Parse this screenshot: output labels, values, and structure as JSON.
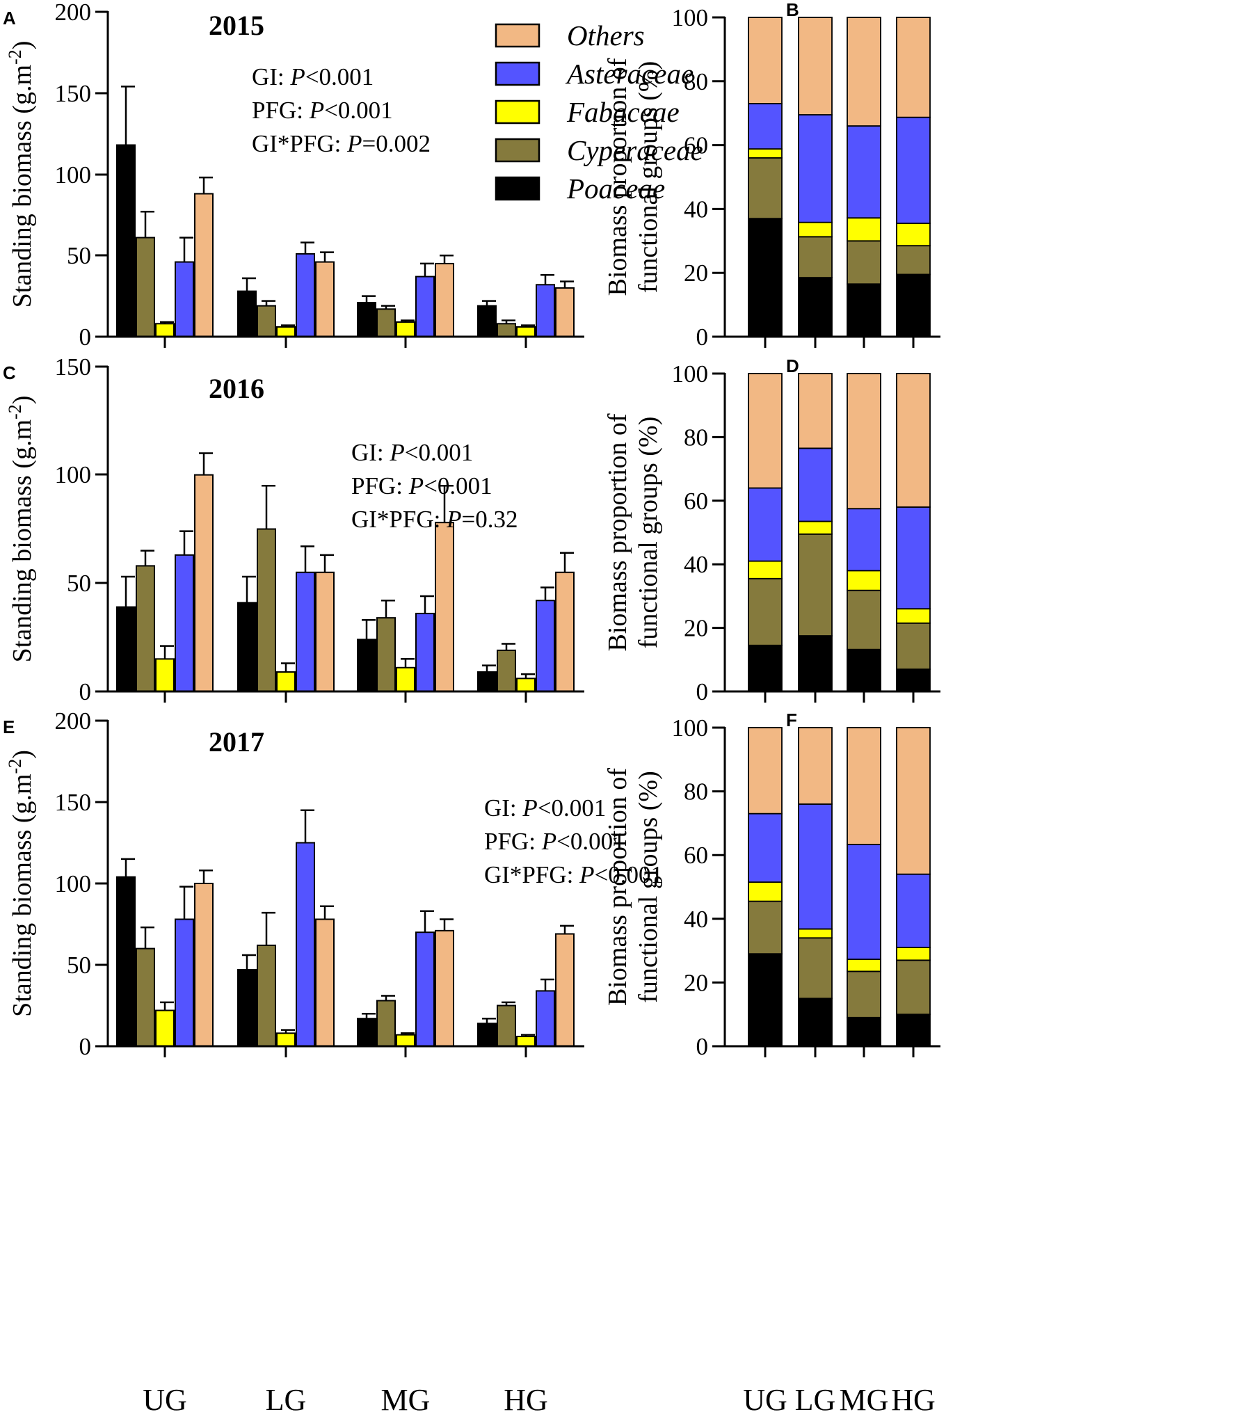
{
  "colors": {
    "Poaceae": "#000000",
    "Cyperaceae": "#857a3d",
    "Fabaceae": "#ffff00",
    "Asteraceae": "#5454ff",
    "Others": "#f2b884"
  },
  "legend": [
    "Others",
    "Asteraceae",
    "Fabaceae",
    "Cyperaceae",
    "Poaceae"
  ],
  "chart_data": [
    {
      "panel": "A",
      "type": "bar",
      "title": "2015",
      "ylabel": "Standing biomass (g.m-2)",
      "ylim": [
        0,
        200
      ],
      "yticks": [
        0,
        50,
        100,
        150,
        200
      ],
      "categories": [
        "UG",
        "LG",
        "MG",
        "HG"
      ],
      "stats": [
        {
          "label": "GI: ",
          "p": "P",
          "rest": "<0.001"
        },
        {
          "label": "PFG: ",
          "p": "P",
          "rest": "<0.001"
        },
        {
          "label": "GI*PFG: ",
          "p": "P",
          "rest": "=0.002"
        }
      ],
      "series": [
        {
          "name": "Poaceae",
          "values": [
            118,
            28,
            21,
            19
          ],
          "errors": [
            36,
            8,
            4,
            3
          ]
        },
        {
          "name": "Cyperaceae",
          "values": [
            61,
            19,
            17,
            8
          ],
          "errors": [
            16,
            3,
            2,
            2
          ]
        },
        {
          "name": "Fabaceae",
          "values": [
            8,
            6,
            9,
            6
          ],
          "errors": [
            1,
            1,
            1,
            1
          ]
        },
        {
          "name": "Asteraceae",
          "values": [
            46,
            51,
            37,
            32
          ],
          "errors": [
            15,
            7,
            8,
            6
          ]
        },
        {
          "name": "Others",
          "values": [
            88,
            46,
            45,
            30
          ],
          "errors": [
            10,
            6,
            5,
            4
          ]
        }
      ]
    },
    {
      "panel": "B",
      "type": "stacked-bar",
      "ylabel_lines": [
        "Biomass proportion of",
        "functional groups (%)"
      ],
      "ylim": [
        0,
        100
      ],
      "yticks": [
        0,
        20,
        40,
        60,
        80,
        100
      ],
      "categories": [
        "UG",
        "LG",
        "MG",
        "HG"
      ],
      "series": [
        {
          "name": "Poaceae",
          "values": [
            37,
            18.5,
            16.5,
            19.5
          ]
        },
        {
          "name": "Cyperaceae",
          "values": [
            19,
            12.8,
            13.5,
            9
          ]
        },
        {
          "name": "Fabaceae",
          "values": [
            2.8,
            4.5,
            7.2,
            7
          ]
        },
        {
          "name": "Asteraceae",
          "values": [
            14.2,
            33.7,
            28.8,
            33.2
          ]
        },
        {
          "name": "Others",
          "values": [
            27,
            30.5,
            34,
            31.3
          ]
        }
      ]
    },
    {
      "panel": "C",
      "type": "bar",
      "title": "2016",
      "ylabel": "Standing biomass (g.m-2)",
      "ylim": [
        0,
        150
      ],
      "yticks": [
        0,
        50,
        100,
        150
      ],
      "categories": [
        "UG",
        "LG",
        "MG",
        "HG"
      ],
      "stats": [
        {
          "label": "GI: ",
          "p": "P",
          "rest": "<0.001"
        },
        {
          "label": "PFG: ",
          "p": "P",
          "rest": "<0.001"
        },
        {
          "label": "GI*PFG: ",
          "p": "P",
          "rest": "=0.32"
        }
      ],
      "series": [
        {
          "name": "Poaceae",
          "values": [
            39,
            41,
            24,
            9
          ],
          "errors": [
            14,
            12,
            9,
            3
          ]
        },
        {
          "name": "Cyperaceae",
          "values": [
            58,
            75,
            34,
            19
          ],
          "errors": [
            7,
            20,
            8,
            3
          ]
        },
        {
          "name": "Fabaceae",
          "values": [
            15,
            9,
            11,
            6
          ],
          "errors": [
            6,
            4,
            4,
            2
          ]
        },
        {
          "name": "Asteraceae",
          "values": [
            63,
            55,
            36,
            42
          ],
          "errors": [
            11,
            12,
            8,
            6
          ]
        },
        {
          "name": "Others",
          "values": [
            100,
            55,
            78,
            55
          ],
          "errors": [
            10,
            8,
            17,
            9
          ]
        }
      ]
    },
    {
      "panel": "D",
      "type": "stacked-bar",
      "ylabel_lines": [
        "Biomass proportion of",
        "functional groups (%)"
      ],
      "ylim": [
        0,
        100
      ],
      "yticks": [
        0,
        20,
        40,
        60,
        80,
        100
      ],
      "categories": [
        "UG",
        "LG",
        "MG",
        "HG"
      ],
      "series": [
        {
          "name": "Poaceae",
          "values": [
            14.5,
            17.5,
            13.2,
            7
          ]
        },
        {
          "name": "Cyperaceae",
          "values": [
            21,
            32,
            18.6,
            14.5
          ]
        },
        {
          "name": "Fabaceae",
          "values": [
            5.5,
            4,
            6.2,
            4.5
          ]
        },
        {
          "name": "Asteraceae",
          "values": [
            23,
            23,
            19.5,
            32
          ]
        },
        {
          "name": "Others",
          "values": [
            36,
            23.5,
            42.5,
            42
          ]
        }
      ]
    },
    {
      "panel": "E",
      "type": "bar",
      "title": "2017",
      "ylabel": "Standing biomass (g.m-2)",
      "ylim": [
        0,
        200
      ],
      "yticks": [
        0,
        50,
        100,
        150,
        200
      ],
      "categories": [
        "UG",
        "LG",
        "MG",
        "HG"
      ],
      "stats": [
        {
          "label": "GI: ",
          "p": "P",
          "rest": "<0.001"
        },
        {
          "label": "PFG: ",
          "p": "P",
          "rest": "<0.001"
        },
        {
          "label": "GI*PFG: ",
          "p": "P",
          "rest": "<0.001"
        }
      ],
      "series": [
        {
          "name": "Poaceae",
          "values": [
            104,
            47,
            17,
            14
          ],
          "errors": [
            11,
            9,
            3,
            3
          ]
        },
        {
          "name": "Cyperaceae",
          "values": [
            60,
            62,
            28,
            25
          ],
          "errors": [
            13,
            20,
            3,
            2
          ]
        },
        {
          "name": "Fabaceae",
          "values": [
            22,
            8,
            7,
            6
          ],
          "errors": [
            5,
            2,
            1,
            1
          ]
        },
        {
          "name": "Asteraceae",
          "values": [
            78,
            125,
            70,
            34
          ],
          "errors": [
            20,
            20,
            13,
            7
          ]
        },
        {
          "name": "Others",
          "values": [
            100,
            78,
            71,
            69
          ],
          "errors": [
            8,
            8,
            7,
            5
          ]
        }
      ]
    },
    {
      "panel": "F",
      "type": "stacked-bar",
      "ylabel_lines": [
        "Biomass proportion of",
        "functional groups (%)"
      ],
      "ylim": [
        0,
        100
      ],
      "yticks": [
        0,
        20,
        40,
        60,
        80,
        100
      ],
      "categories": [
        "UG",
        "LG",
        "MG",
        "HG"
      ],
      "series": [
        {
          "name": "Poaceae",
          "values": [
            29,
            15,
            9,
            10
          ]
        },
        {
          "name": "Cyperaceae",
          "values": [
            16.5,
            19,
            14.5,
            17
          ]
        },
        {
          "name": "Fabaceae",
          "values": [
            6,
            2.8,
            3.8,
            4
          ]
        },
        {
          "name": "Asteraceae",
          "values": [
            21.5,
            39.2,
            36,
            23
          ]
        },
        {
          "name": "Others",
          "values": [
            27,
            24,
            36.7,
            46
          ]
        }
      ]
    }
  ]
}
